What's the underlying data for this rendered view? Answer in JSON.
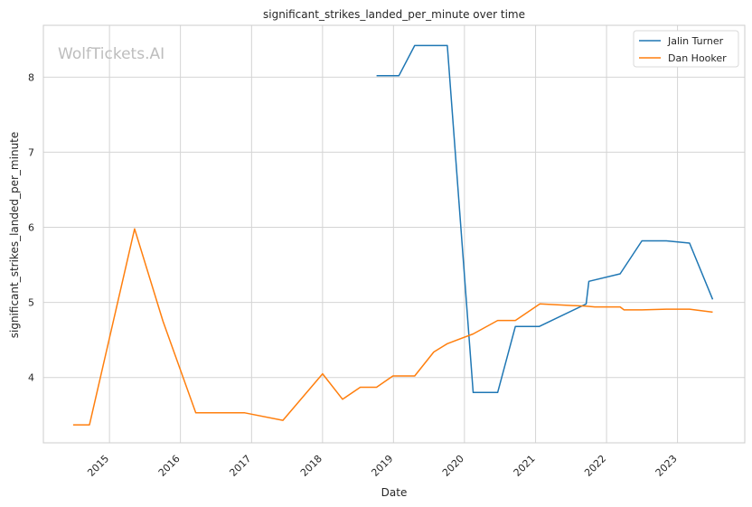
{
  "watermark": "WolfTickets.AI",
  "chart_data": {
    "type": "line",
    "title": "significant_strikes_landed_per_minute over time",
    "xlabel": "Date",
    "ylabel": "significant_strikes_landed_per_minute",
    "x_ticks": [
      "2015",
      "2016",
      "2017",
      "2018",
      "2019",
      "2020",
      "2021",
      "2022",
      "2023"
    ],
    "y_ticks": [
      4,
      5,
      6,
      7,
      8
    ],
    "xlim": [
      "2014-01-26",
      "2023-12-13"
    ],
    "ylim": [
      3.13,
      8.69
    ],
    "grid": true,
    "legend_position": "top-right",
    "series": [
      {
        "name": "Jalin Turner",
        "color": "#1f77b4",
        "points": [
          [
            "2018-10-06",
            8.02
          ],
          [
            "2019-01-29",
            8.02
          ],
          [
            "2019-04-20",
            8.42
          ],
          [
            "2019-10-05",
            8.42
          ],
          [
            "2020-02-15",
            3.8
          ],
          [
            "2020-06-20",
            3.8
          ],
          [
            "2020-09-19",
            4.68
          ],
          [
            "2021-01-20",
            4.68
          ],
          [
            "2021-09-18",
            4.98
          ],
          [
            "2021-10-02",
            5.28
          ],
          [
            "2022-03-12",
            5.38
          ],
          [
            "2022-07-02",
            5.82
          ],
          [
            "2022-11-05",
            5.82
          ],
          [
            "2023-03-04",
            5.79
          ],
          [
            "2023-07-01",
            5.04
          ]
        ]
      },
      {
        "name": "Dan Hooker",
        "color": "#ff7f0e",
        "points": [
          [
            "2014-06-28",
            3.37
          ],
          [
            "2014-09-20",
            3.37
          ],
          [
            "2015-05-10",
            5.98
          ],
          [
            "2015-10-03",
            4.75
          ],
          [
            "2016-03-20",
            3.53
          ],
          [
            "2016-11-27",
            3.53
          ],
          [
            "2017-06-11",
            3.43
          ],
          [
            "2018-01-01",
            4.05
          ],
          [
            "2018-04-14",
            3.71
          ],
          [
            "2018-07-14",
            3.87
          ],
          [
            "2018-10-06",
            3.87
          ],
          [
            "2018-12-29",
            4.02
          ],
          [
            "2019-04-20",
            4.02
          ],
          [
            "2019-07-27",
            4.34
          ],
          [
            "2019-10-05",
            4.45
          ],
          [
            "2020-02-15",
            4.58
          ],
          [
            "2020-06-20",
            4.76
          ],
          [
            "2020-09-19",
            4.76
          ],
          [
            "2021-01-23",
            4.98
          ],
          [
            "2021-09-18",
            4.95
          ],
          [
            "2021-11-01",
            4.94
          ],
          [
            "2022-03-12",
            4.94
          ],
          [
            "2022-04-01",
            4.9
          ],
          [
            "2022-07-02",
            4.9
          ],
          [
            "2022-11-05",
            4.91
          ],
          [
            "2023-03-04",
            4.91
          ],
          [
            "2023-07-01",
            4.87
          ]
        ]
      }
    ]
  }
}
